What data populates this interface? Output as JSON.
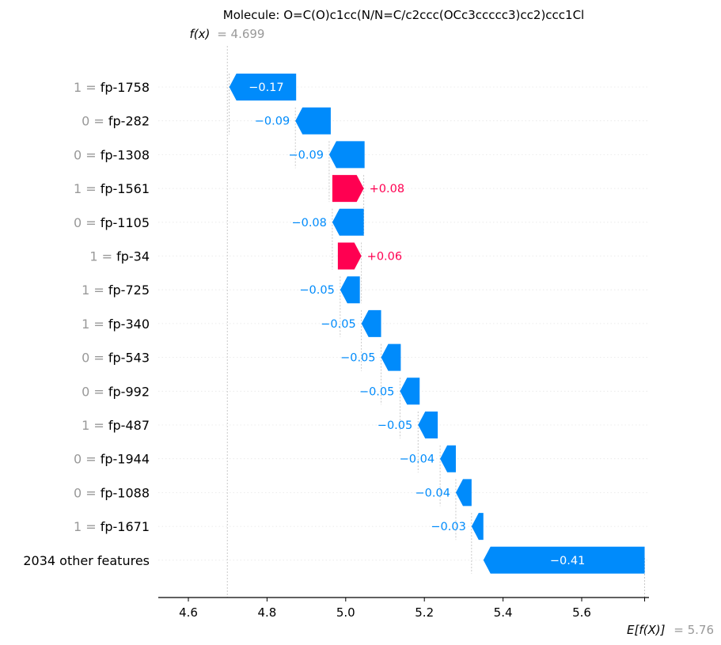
{
  "chart_data": {
    "type": "waterfall",
    "title": "Molecule: O=C(O)c1cc(N/N=C/c2ccc(OCc3ccccc3)cc2)ccc1Cl",
    "fx_label": "f(x)",
    "fx_value": "= 4.699",
    "ex_label": "E[f(X)]",
    "ex_value": "= 5.76",
    "fx_numeric": 4.699,
    "ex_numeric": 5.76,
    "xlim": [
      4.52,
      5.76
    ],
    "xticks": [
      4.6,
      4.8,
      5.0,
      5.2,
      5.4,
      5.6
    ],
    "xtick_labels": [
      "4.6",
      "4.8",
      "5.0",
      "5.2",
      "5.4",
      "5.6"
    ],
    "features": [
      {
        "value": "1",
        "name": "fp-1758",
        "shap": -0.17,
        "label": "−0.17",
        "start": 4.874
      },
      {
        "value": "0",
        "name": "fp-282",
        "shap": -0.09,
        "label": "−0.09",
        "start": 4.962
      },
      {
        "value": "0",
        "name": "fp-1308",
        "shap": -0.09,
        "label": "−0.09",
        "start": 5.048
      },
      {
        "value": "1",
        "name": "fp-1561",
        "shap": 0.08,
        "label": "+0.08",
        "start": 4.966
      },
      {
        "value": "0",
        "name": "fp-1105",
        "shap": -0.08,
        "label": "−0.08",
        "start": 5.046
      },
      {
        "value": "1",
        "name": "fp-34",
        "shap": 0.06,
        "label": "+0.06",
        "start": 4.98
      },
      {
        "value": "1",
        "name": "fp-725",
        "shap": -0.05,
        "label": "−0.05",
        "start": 5.036
      },
      {
        "value": "1",
        "name": "fp-340",
        "shap": -0.05,
        "label": "−0.05",
        "start": 5.09
      },
      {
        "value": "0",
        "name": "fp-543",
        "shap": -0.05,
        "label": "−0.05",
        "start": 5.14
      },
      {
        "value": "0",
        "name": "fp-992",
        "shap": -0.05,
        "label": "−0.05",
        "start": 5.188
      },
      {
        "value": "1",
        "name": "fp-487",
        "shap": -0.05,
        "label": "−0.05",
        "start": 5.234
      },
      {
        "value": "0",
        "name": "fp-1944",
        "shap": -0.04,
        "label": "−0.04",
        "start": 5.28
      },
      {
        "value": "0",
        "name": "fp-1088",
        "shap": -0.04,
        "label": "−0.04",
        "start": 5.32
      },
      {
        "value": "1",
        "name": "fp-1671",
        "shap": -0.03,
        "label": "−0.03",
        "start": 5.35
      },
      {
        "value": "",
        "name": "2034 other features",
        "shap": -0.41,
        "label": "−0.41",
        "start": 5.76
      }
    ],
    "colors": {
      "positive": "#ff0051",
      "negative": "#008bfb",
      "grey": "#999999"
    }
  }
}
